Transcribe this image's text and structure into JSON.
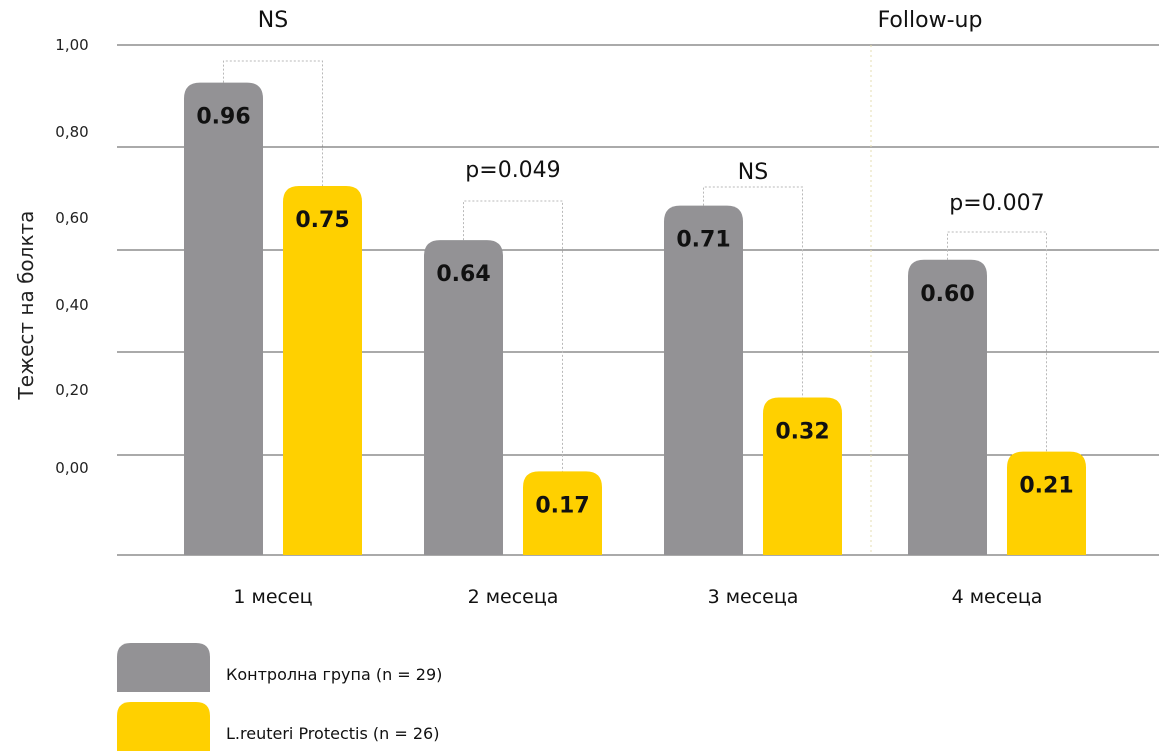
{
  "chart_data": {
    "type": "bar",
    "ylabel": "Тежест на болкта",
    "yticks": [
      "1,00",
      "0,80",
      "0,60",
      "0,40",
      "0,20",
      "0,00"
    ],
    "categories": [
      "1 месец",
      "2 месеца",
      "3 месеца",
      "4 месеца"
    ],
    "series": [
      {
        "name": "Контролна група (n = 29)",
        "color": "#939295",
        "values": [
          0.96,
          0.64,
          0.71,
          0.6
        ],
        "labels": [
          "0.96",
          "0.64",
          "0.71",
          "0.60"
        ]
      },
      {
        "name": "L.reuteri Protectis (n = 26)",
        "color": "#FFD000",
        "values": [
          0.75,
          0.17,
          0.32,
          0.21
        ],
        "labels": [
          "0.75",
          "0.17",
          "0.32",
          "0.21"
        ]
      }
    ],
    "annotations": [
      "NS",
      "p=0.049",
      "NS",
      "p=0.007"
    ],
    "section_label": "Follow-up",
    "grid": true,
    "legend_position": "bottom-left"
  }
}
